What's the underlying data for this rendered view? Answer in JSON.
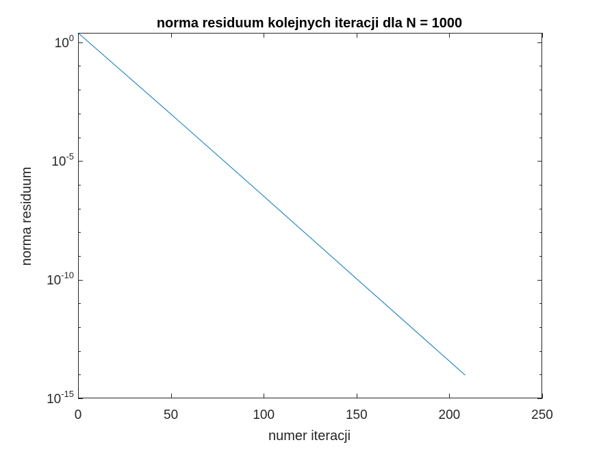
{
  "chart_data": {
    "type": "line",
    "title": "norma residuum kolejnych iteracji dla N = 1000",
    "xlabel": "numer iteracji",
    "ylabel": "norma residuum",
    "xlim": [
      0,
      250
    ],
    "ylim": [
      1e-15,
      2.5
    ],
    "yscale": "log",
    "grid": false,
    "legend": "none",
    "x_ticks": [
      "0",
      "50",
      "100",
      "150",
      "200",
      "250"
    ],
    "x_tick_values": [
      0,
      50,
      100,
      150,
      200,
      250
    ],
    "y_ticks": [
      {
        "base": "10",
        "exp": "0",
        "value": 1
      },
      {
        "base": "10",
        "exp": "-5",
        "value": 1e-05
      },
      {
        "base": "10",
        "exp": "-10",
        "value": 1e-10
      },
      {
        "base": "10",
        "exp": "-15",
        "value": 1e-15
      }
    ],
    "series": [
      {
        "color": "#0072BD",
        "x": [
          0,
          50,
          100,
          150,
          208.5
        ],
        "y": [
          2.7,
          0.00095,
          3.3e-07,
          1.1e-10,
          9.5e-15
        ]
      }
    ]
  }
}
